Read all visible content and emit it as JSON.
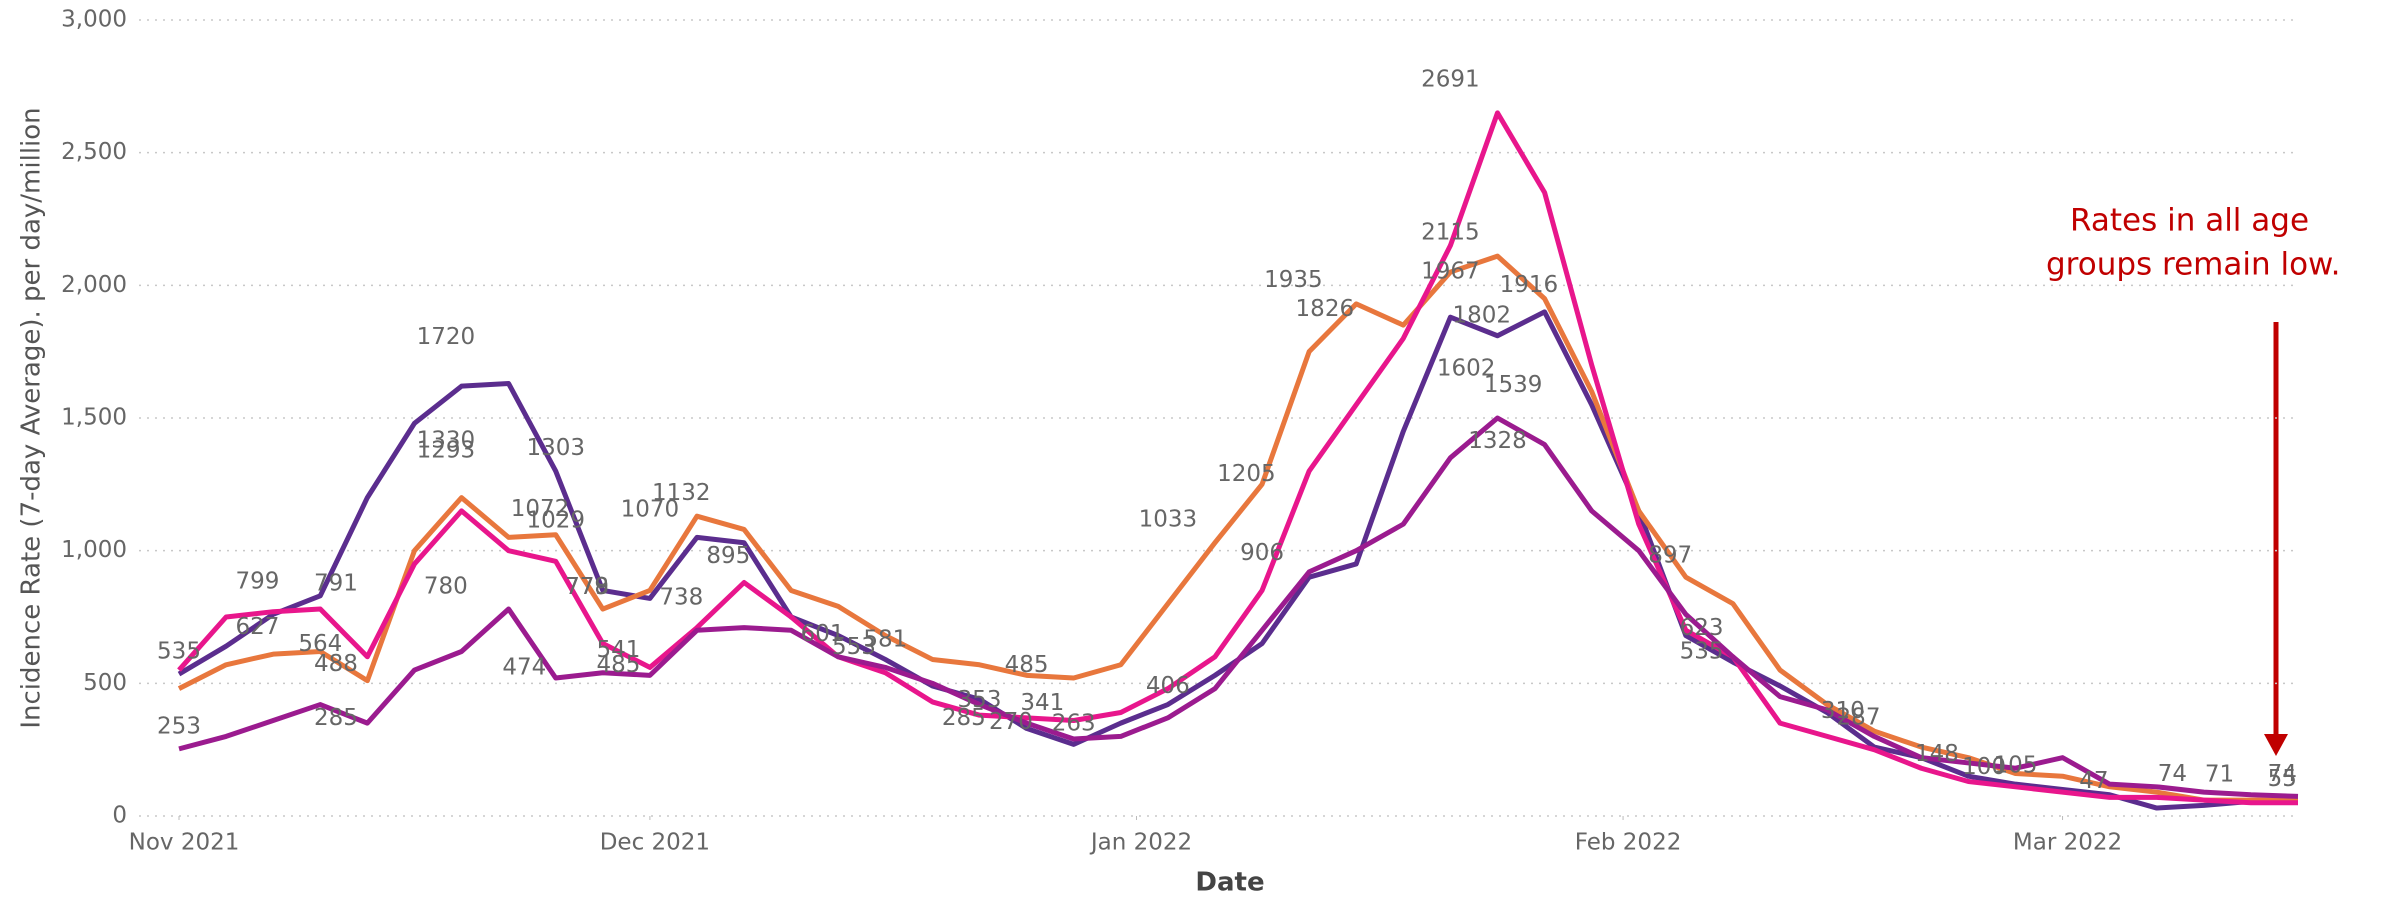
{
  "chart_data": {
    "type": "line",
    "y_label": "Incidence Rate (7-day Average). per day/million",
    "x_label": "Date",
    "x": [
      0,
      3,
      6,
      9,
      12,
      15,
      18,
      21,
      24,
      27,
      30,
      33,
      36,
      39,
      42,
      45,
      48,
      51,
      54,
      57,
      60,
      63,
      66,
      69,
      72,
      75,
      78,
      81,
      84,
      87,
      90,
      93,
      96,
      99,
      102,
      105,
      108,
      111,
      114,
      117,
      120,
      123,
      126,
      129,
      132,
      135
    ],
    "series": [
      {
        "color": "#5b2d8e",
        "values": [
          535,
          640,
          760,
          830,
          1200,
          1480,
          1620,
          1630,
          1300,
          850,
          820,
          1050,
          1030,
          750,
          680,
          590,
          490,
          440,
          330,
          270,
          350,
          420,
          530,
          650,
          900,
          950,
          1450,
          1880,
          1810,
          1900,
          1550,
          1150,
          680,
          580,
          490,
          390,
          260,
          220,
          150,
          120,
          100,
          80,
          30,
          40,
          55,
          55
        ]
      },
      {
        "color": "#e8773d",
        "values": [
          480,
          570,
          610,
          620,
          510,
          1000,
          1200,
          1050,
          1060,
          780,
          850,
          1130,
          1080,
          850,
          790,
          680,
          590,
          570,
          530,
          520,
          570,
          800,
          1030,
          1250,
          1750,
          1930,
          1850,
          2050,
          2110,
          1950,
          1600,
          1150,
          900,
          800,
          550,
          420,
          320,
          260,
          220,
          160,
          150,
          110,
          90,
          60,
          60,
          60
        ]
      },
      {
        "color": "#e8168c",
        "values": [
          550,
          750,
          770,
          780,
          600,
          950,
          1150,
          1000,
          960,
          650,
          560,
          710,
          880,
          750,
          600,
          540,
          430,
          380,
          370,
          360,
          390,
          480,
          600,
          850,
          1300,
          1550,
          1800,
          2150,
          2650,
          2350,
          1700,
          1100,
          700,
          600,
          350,
          300,
          250,
          180,
          130,
          110,
          90,
          70,
          70,
          60,
          50,
          50
        ]
      },
      {
        "color": "#9b1b8f",
        "values": [
          253,
          300,
          360,
          420,
          350,
          550,
          620,
          780,
          520,
          540,
          530,
          700,
          710,
          700,
          600,
          560,
          500,
          420,
          350,
          290,
          300,
          370,
          480,
          700,
          920,
          1000,
          1100,
          1350,
          1500,
          1400,
          1150,
          1000,
          760,
          600,
          450,
          400,
          300,
          220,
          200,
          180,
          220,
          120,
          110,
          90,
          80,
          74
        ]
      }
    ],
    "data_labels": [
      {
        "x": 0,
        "value": 535
      },
      {
        "x": 0,
        "value": 253
      },
      {
        "x": 5,
        "value": 799
      },
      {
        "x": 5,
        "value": 627
      },
      {
        "x": 10,
        "value": 791
      },
      {
        "x": 10,
        "value": 488
      },
      {
        "x": 9,
        "value": 564
      },
      {
        "x": 10,
        "value": 285
      },
      {
        "x": 17,
        "value": 1720
      },
      {
        "x": 17,
        "value": 1293
      },
      {
        "x": 17,
        "value": 1330
      },
      {
        "x": 17,
        "value": 780
      },
      {
        "x": 24,
        "value": 1303
      },
      {
        "x": 23,
        "value": 1072
      },
      {
        "x": 24,
        "value": 1029
      },
      {
        "x": 22,
        "value": 474
      },
      {
        "x": 26,
        "value": 779
      },
      {
        "x": 26,
        "value": 778
      },
      {
        "x": 28,
        "value": 541
      },
      {
        "x": 28,
        "value": 485
      },
      {
        "x": 30,
        "value": 1070
      },
      {
        "x": 32,
        "value": 1132
      },
      {
        "x": 32,
        "value": 738
      },
      {
        "x": 35,
        "value": 895
      },
      {
        "x": 41,
        "value": 601
      },
      {
        "x": 45,
        "value": 581
      },
      {
        "x": 43,
        "value": 553
      },
      {
        "x": 51,
        "value": 353
      },
      {
        "x": 54,
        "value": 485
      },
      {
        "x": 55,
        "value": 341
      },
      {
        "x": 53,
        "value": 270
      },
      {
        "x": 50,
        "value": 285
      },
      {
        "x": 57,
        "value": 263
      },
      {
        "x": 63,
        "value": 1033
      },
      {
        "x": 63,
        "value": 406
      },
      {
        "x": 68,
        "value": 1205
      },
      {
        "x": 69,
        "value": 906
      },
      {
        "x": 71,
        "value": 1935
      },
      {
        "x": 73,
        "value": 1826
      },
      {
        "x": 81,
        "value": 2691
      },
      {
        "x": 81,
        "value": 2115
      },
      {
        "x": 81,
        "value": 1967
      },
      {
        "x": 82,
        "value": 1602
      },
      {
        "x": 83,
        "value": 1802
      },
      {
        "x": 86,
        "value": 1916
      },
      {
        "x": 85,
        "value": 1539
      },
      {
        "x": 84,
        "value": 1328
      },
      {
        "x": 95,
        "value": 897
      },
      {
        "x": 97,
        "value": 623
      },
      {
        "x": 97,
        "value": 535
      },
      {
        "x": 107,
        "value": 287
      },
      {
        "x": 106,
        "value": 310
      },
      {
        "x": 112,
        "value": 148
      },
      {
        "x": 115,
        "value": 100
      },
      {
        "x": 117,
        "value": 105
      },
      {
        "x": 122,
        "value": 47
      },
      {
        "x": 127,
        "value": 74
      },
      {
        "x": 130,
        "value": 71
      },
      {
        "x": 134,
        "value": 74
      },
      {
        "x": 134,
        "value": 55
      }
    ],
    "annotation": [
      "Rates in all age",
      "groups remain low."
    ],
    "xlim": [
      0,
      135
    ],
    "xticks": [
      {
        "value": 0,
        "label": "Nov 2021"
      },
      {
        "value": 30,
        "label": "Dec 2021"
      },
      {
        "value": 61,
        "label": "Jan 2022"
      },
      {
        "value": 92,
        "label": "Feb 2022"
      },
      {
        "value": 120,
        "label": "Mar 2022"
      }
    ],
    "ylim": [
      0,
      3000
    ],
    "yticks": [
      0,
      500,
      {
        "value": 1000,
        "label": "1,000"
      },
      {
        "value": 1500,
        "label": "1,500"
      },
      {
        "value": 2000,
        "label": "2,000"
      },
      {
        "value": 2500,
        "label": "2,500"
      },
      {
        "value": 3000,
        "label": "3,000"
      }
    ],
    "grid": true
  }
}
